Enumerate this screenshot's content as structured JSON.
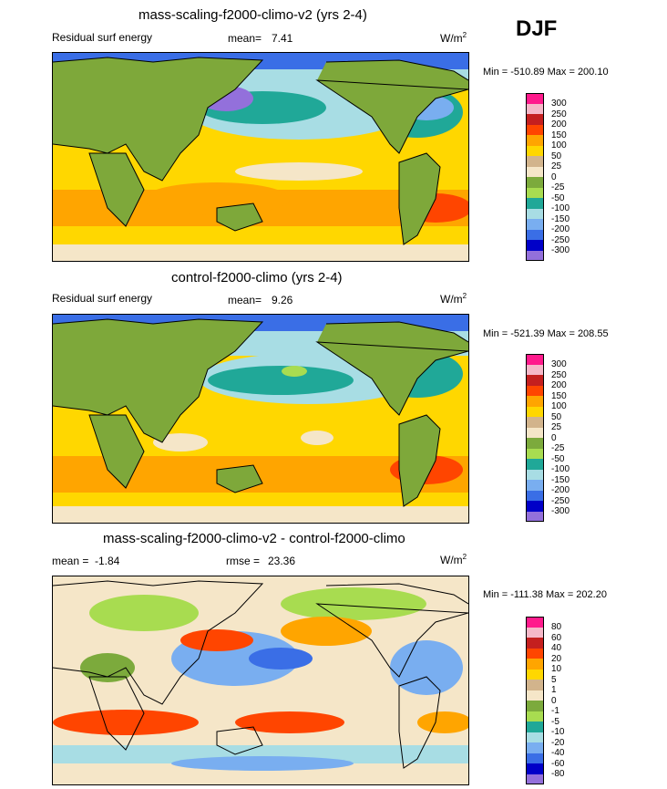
{
  "season": "DJF",
  "panels": [
    {
      "title": "mass-scaling-f2000-climo-v2 (yrs 2-4)",
      "left_label": "Residual surf energy",
      "mean_label": "mean=",
      "mean_value": "7.41",
      "units": "W/m",
      "units_sup": "2",
      "minmax": "Min = -510.89 Max = 200.10"
    },
    {
      "title": "control-f2000-climo (yrs 2-4)",
      "left_label": "Residual surf energy",
      "mean_label": "mean=",
      "mean_value": "9.26",
      "units": "W/m",
      "units_sup": "2",
      "minmax": "Min = -521.39 Max = 208.55"
    },
    {
      "title": "mass-scaling-f2000-climo-v2 - control-f2000-climo",
      "mean_label": "mean =",
      "mean_value": "-1.84",
      "rmse_label": "rmse =",
      "rmse_value": "23.36",
      "units": "W/m",
      "units_sup": "2",
      "minmax": "Min = -111.38 Max = 202.20"
    }
  ],
  "colorbars": [
    {
      "labels": [
        "300",
        "250",
        "200",
        "150",
        "100",
        "50",
        "25",
        "0",
        "-25",
        "-50",
        "-100",
        "-150",
        "-200",
        "-250",
        "-300"
      ],
      "colors": [
        "#ff1a8c",
        "#f5b8c8",
        "#c41f1f",
        "#ff4500",
        "#ffa500",
        "#ffd700",
        "#d2b48c",
        "#f5e6c8",
        "#7caa3c",
        "#a8dc50",
        "#20a898",
        "#a8dde4",
        "#79aef0",
        "#3a6ee6",
        "#0000c8",
        "#9370db"
      ]
    },
    {
      "labels": [
        "300",
        "250",
        "200",
        "150",
        "100",
        "50",
        "25",
        "0",
        "-25",
        "-50",
        "-100",
        "-150",
        "-200",
        "-250",
        "-300"
      ],
      "colors": [
        "#ff1a8c",
        "#f5b8c8",
        "#c41f1f",
        "#ff4500",
        "#ffa500",
        "#ffd700",
        "#d2b48c",
        "#f5e6c8",
        "#7caa3c",
        "#a8dc50",
        "#20a898",
        "#a8dde4",
        "#79aef0",
        "#3a6ee6",
        "#0000c8",
        "#9370db"
      ]
    },
    {
      "labels": [
        "80",
        "60",
        "40",
        "20",
        "10",
        "5",
        "1",
        "0",
        "-1",
        "-5",
        "-10",
        "-20",
        "-40",
        "-60",
        "-80"
      ],
      "colors": [
        "#ff1a8c",
        "#f5b8c8",
        "#c41f1f",
        "#ff4500",
        "#ffa500",
        "#ffd700",
        "#d2b48c",
        "#f5e6c8",
        "#7caa3c",
        "#a8dc50",
        "#20a898",
        "#a8dde4",
        "#79aef0",
        "#3a6ee6",
        "#0000c8",
        "#9370db"
      ]
    }
  ],
  "map_colors": {
    "land": "#7ea83a",
    "ocean_warm": "#ffd700",
    "ocean_orange": "#ffa500",
    "ocean_red": "#ff4500",
    "ocean_tan": "#f5e6c8",
    "ocean_cyan": "#a8dde4",
    "ocean_teal": "#20a898",
    "ocean_blue": "#79aef0",
    "ocean_dblue": "#3a6ee6",
    "ocean_purple": "#9370db",
    "diff_tan": "#f5e6c8",
    "diff_lightgreen": "#a8dc50",
    "diff_green": "#7caa3c"
  }
}
